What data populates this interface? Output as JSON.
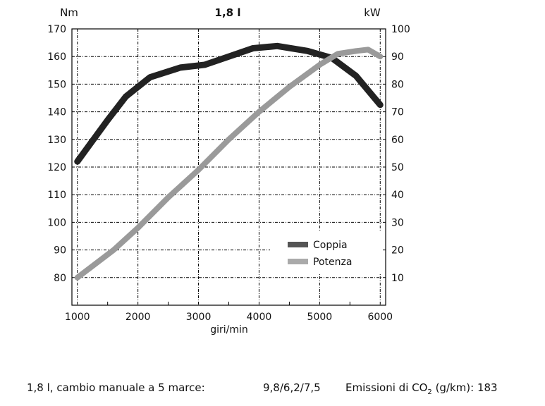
{
  "chart_data": {
    "type": "line",
    "title": "1,8 l",
    "xlabel": "giri/min",
    "ylabel_left": "Nm",
    "ylabel_right": "kW",
    "xlim": [
      910,
      6090
    ],
    "ylim_left": [
      70,
      170
    ],
    "ylim_right": [
      0,
      100
    ],
    "x_ticks": [
      1000,
      2000,
      3000,
      4000,
      5000,
      6000
    ],
    "y_ticks_left": [
      80,
      90,
      100,
      110,
      120,
      130,
      140,
      150,
      160,
      170
    ],
    "y_ticks_right": [
      10,
      20,
      30,
      40,
      50,
      60,
      70,
      80,
      90,
      100
    ],
    "grid": true,
    "legend_position": "lower-right",
    "series": [
      {
        "name": "Coppia",
        "axis": "left",
        "color": "#222222",
        "x": [
          1000,
          1500,
          1800,
          2200,
          2700,
          3100,
          3500,
          3900,
          4300,
          4800,
          5200,
          5600,
          6000
        ],
        "y": [
          122,
          137,
          145.5,
          152.5,
          156,
          157,
          160,
          163,
          163.8,
          162,
          159.5,
          153,
          142.5
        ]
      },
      {
        "name": "Potenza",
        "axis": "right",
        "color": "#9a9a9a",
        "x": [
          1000,
          1600,
          2000,
          2500,
          3000,
          3500,
          4000,
          4500,
          5000,
          5300,
          5600,
          5800,
          6000
        ],
        "y": [
          10,
          20,
          28,
          39,
          49,
          60,
          70,
          79,
          87,
          91,
          92,
          92.5,
          90
        ]
      }
    ]
  },
  "footer": {
    "engine": "1,8 l, cambio manuale a 5 marce:",
    "consumption": "9,8/6,2/7,5",
    "emissions_prefix": "Emissioni di CO",
    "emissions_sub": "2",
    "emissions_suffix": " (g/km): 183"
  }
}
